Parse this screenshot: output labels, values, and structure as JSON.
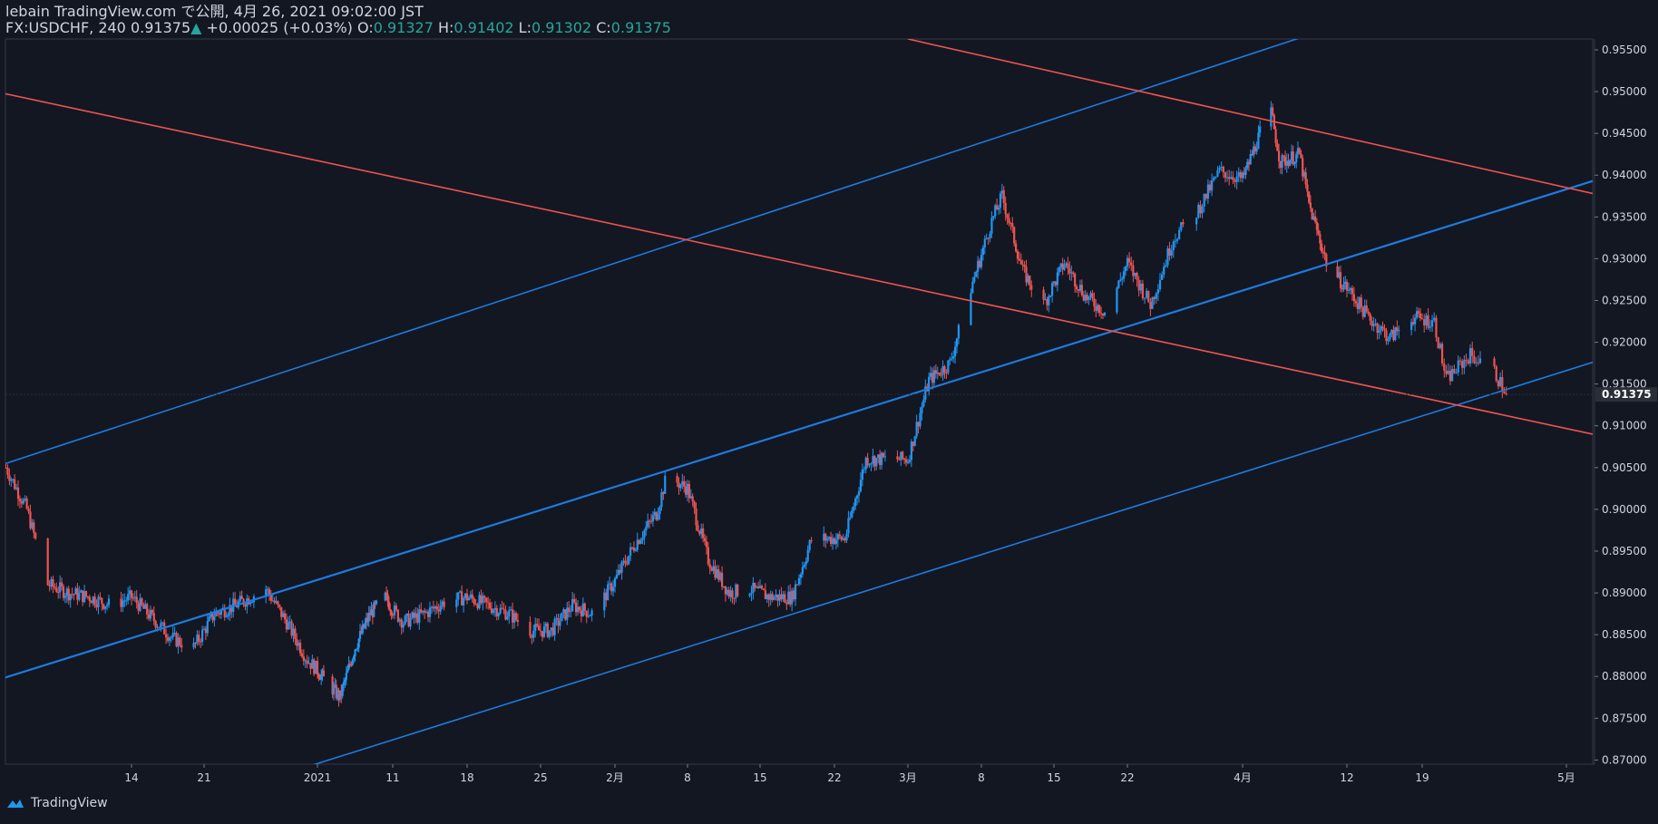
{
  "header": {
    "publisher": "lebain TradingView.com で公開, 4月 26, 2021 09:02:00 JST",
    "symbol": "FX:USDCHF, 240",
    "last": "0.91375",
    "change": "+0.00025 (+0.03%)",
    "o_label": "O:",
    "o_value": "0.91327",
    "h_label": "H:",
    "h_value": "0.91402",
    "l_label": "L:",
    "l_value": "0.91302",
    "c_label": "C:",
    "c_value": "0.91375"
  },
  "footer": {
    "brand": "TradingView"
  },
  "colors": {
    "background": "#131722",
    "up": "#2196f3",
    "down": "#ef5350",
    "blue_line": "#1e7be0",
    "red_line": "#ef5350",
    "grid_text": "#d1d4dc"
  },
  "chart_data": {
    "type": "candlestick",
    "title": "FX:USDCHF, 240",
    "ylim": [
      0.8695,
      0.9563
    ],
    "y_ticks": [
      0.955,
      0.95,
      0.945,
      0.94,
      0.935,
      0.93,
      0.925,
      0.92,
      0.915,
      0.91,
      0.905,
      0.9,
      0.895,
      0.89,
      0.885,
      0.88,
      0.875,
      0.87
    ],
    "y_tick_labels": [
      "0.95500",
      "0.95000",
      "0.94500",
      "0.94000",
      "0.93500",
      "0.93000",
      "0.92500",
      "0.92000",
      "0.91500",
      "0.91000",
      "0.90500",
      "0.90000",
      "0.89500",
      "0.89000",
      "0.88500",
      "0.88000",
      "0.87500",
      "0.87000"
    ],
    "x_ticks": [
      {
        "label": "14",
        "date": "2020-12-14"
      },
      {
        "label": "21",
        "date": "2020-12-21"
      },
      {
        "label": "2021",
        "date": "2021-01-01"
      },
      {
        "label": "11",
        "date": "2021-01-11"
      },
      {
        "label": "18",
        "date": "2021-01-18"
      },
      {
        "label": "25",
        "date": "2021-01-25"
      },
      {
        "label": "2月",
        "date": "2021-02-01"
      },
      {
        "label": "8",
        "date": "2021-02-08"
      },
      {
        "label": "15",
        "date": "2021-02-15"
      },
      {
        "label": "22",
        "date": "2021-02-22"
      },
      {
        "label": "3月",
        "date": "2021-03-01"
      },
      {
        "label": "8",
        "date": "2021-03-08"
      },
      {
        "label": "15",
        "date": "2021-03-15"
      },
      {
        "label": "22",
        "date": "2021-03-22"
      },
      {
        "label": "4月",
        "date": "2021-04-01"
      },
      {
        "label": "12",
        "date": "2021-04-12"
      },
      {
        "label": "19",
        "date": "2021-04-19"
      },
      {
        "label": "5月",
        "date": "2021-05-01"
      }
    ],
    "last_price_label": "0.91375",
    "path": [
      [
        "2020-12-02",
        0.905
      ],
      [
        "2020-12-04",
        0.9
      ],
      [
        "2020-12-06",
        0.891
      ],
      [
        "2020-12-08",
        0.89
      ],
      [
        "2020-12-10",
        0.8895
      ],
      [
        "2020-12-12",
        0.8885
      ],
      [
        "2020-12-14",
        0.8895
      ],
      [
        "2020-12-16",
        0.887
      ],
      [
        "2020-12-18",
        0.8845
      ],
      [
        "2020-12-20",
        0.8835
      ],
      [
        "2020-12-22",
        0.8875
      ],
      [
        "2020-12-24",
        0.8885
      ],
      [
        "2020-12-27",
        0.8905
      ],
      [
        "2020-12-29",
        0.8865
      ],
      [
        "2020-12-31",
        0.882
      ],
      [
        "2021-01-02",
        0.8795
      ],
      [
        "2021-01-04",
        0.8775
      ],
      [
        "2021-01-06",
        0.8835
      ],
      [
        "2021-01-08",
        0.8875
      ],
      [
        "2021-01-10",
        0.8895
      ],
      [
        "2021-01-12",
        0.8865
      ],
      [
        "2021-01-14",
        0.8875
      ],
      [
        "2021-01-16",
        0.889
      ],
      [
        "2021-01-18",
        0.8895
      ],
      [
        "2021-01-20",
        0.8885
      ],
      [
        "2021-01-22",
        0.8875
      ],
      [
        "2021-01-24",
        0.8855
      ],
      [
        "2021-01-26",
        0.8855
      ],
      [
        "2021-01-28",
        0.8885
      ],
      [
        "2021-01-30",
        0.8875
      ],
      [
        "2021-02-01",
        0.8915
      ],
      [
        "2021-02-03",
        0.896
      ],
      [
        "2021-02-05",
        0.8995
      ],
      [
        "2021-02-06",
        0.904
      ],
      [
        "2021-02-08",
        0.9025
      ],
      [
        "2021-02-10",
        0.894
      ],
      [
        "2021-02-12",
        0.89
      ],
      [
        "2021-02-14",
        0.8905
      ],
      [
        "2021-02-16",
        0.8895
      ],
      [
        "2021-02-18",
        0.8895
      ],
      [
        "2021-02-20",
        0.897
      ],
      [
        "2021-02-21",
        0.8965
      ],
      [
        "2021-02-23",
        0.8965
      ],
      [
        "2021-02-25",
        0.906
      ],
      [
        "2021-02-27",
        0.906
      ],
      [
        "2021-03-01",
        0.906
      ],
      [
        "2021-03-03",
        0.9155
      ],
      [
        "2021-03-05",
        0.9175
      ],
      [
        "2021-03-07",
        0.9265
      ],
      [
        "2021-03-09",
        0.9345
      ],
      [
        "2021-03-10",
        0.9375
      ],
      [
        "2021-03-12",
        0.9285
      ],
      [
        "2021-03-14",
        0.9245
      ],
      [
        "2021-03-16",
        0.9295
      ],
      [
        "2021-03-18",
        0.9255
      ],
      [
        "2021-03-20",
        0.9235
      ],
      [
        "2021-03-22",
        0.9295
      ],
      [
        "2021-03-24",
        0.9245
      ],
      [
        "2021-03-26",
        0.9325
      ],
      [
        "2021-03-28",
        0.9355
      ],
      [
        "2021-03-30",
        0.9405
      ],
      [
        "2021-04-01",
        0.9395
      ],
      [
        "2021-04-03",
        0.9455
      ],
      [
        "2021-04-04",
        0.9475
      ],
      [
        "2021-04-05",
        0.9415
      ],
      [
        "2021-04-07",
        0.9425
      ],
      [
        "2021-04-08",
        0.9365
      ],
      [
        "2021-04-10",
        0.929
      ],
      [
        "2021-04-12",
        0.9265
      ],
      [
        "2021-04-14",
        0.923
      ],
      [
        "2021-04-16",
        0.9205
      ],
      [
        "2021-04-18",
        0.923
      ],
      [
        "2021-04-20",
        0.9225
      ],
      [
        "2021-04-21",
        0.9155
      ],
      [
        "2021-04-23",
        0.9185
      ],
      [
        "2021-04-25",
        0.9165
      ],
      [
        "2021-04-26",
        0.91375
      ]
    ],
    "trend_lines": [
      {
        "name": "upper-blue",
        "color": "blue",
        "p1": [
          "2020-12-02",
          0.9055
        ],
        "p2": [
          "2021-04-28",
          0.9655
        ]
      },
      {
        "name": "middle-blue",
        "color": "blue",
        "p1": [
          "2020-12-01",
          0.8795
        ],
        "p2": [
          "2021-05-03",
          0.9393
        ]
      },
      {
        "name": "lower-blue",
        "color": "blue",
        "p1": [
          "2020-12-30",
          0.8688
        ],
        "p2": [
          "2021-05-03",
          0.9176
        ]
      },
      {
        "name": "upper-red",
        "color": "red",
        "p1": [
          "2021-03-01",
          0.9563
        ],
        "p2": [
          "2021-05-03",
          0.9378
        ]
      },
      {
        "name": "lower-red",
        "color": "red",
        "p1": [
          "2020-12-01",
          0.95
        ],
        "p2": [
          "2021-05-03",
          0.909
        ]
      }
    ]
  }
}
